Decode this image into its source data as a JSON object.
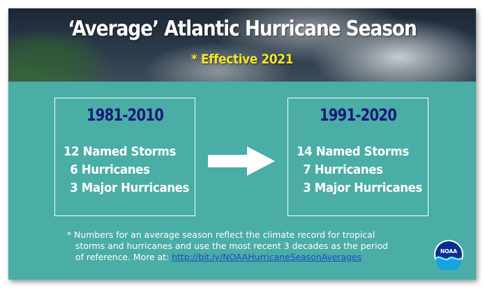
{
  "banner": {
    "title": "‘Average’ Atlantic Hurricane Season",
    "subtitle": "* Effective 2021"
  },
  "periods": [
    {
      "years": "1981-2010",
      "stats": [
        "12 Named Storms",
        "6 Hurricanes",
        "3 Major Hurricanes"
      ]
    },
    {
      "years": "1991-2020",
      "stats": [
        "14 Named Storms",
        "7 Hurricanes",
        "3 Major Hurricanes"
      ]
    }
  ],
  "arrow_icon": "right-arrow-icon",
  "footnote": {
    "line1": "* Numbers for an average season reflect the climate record for tropical",
    "line2": "storms and hurricanes and use the most recent 3 decades as the period",
    "line3_prefix": "of reference. More at: ",
    "link": "http://bit.ly/NOAAHurricaneSeasonAverages"
  },
  "logo": {
    "icon": "noaa-logo-icon",
    "text": "NOAA"
  },
  "colors": {
    "background": "#4aada6",
    "period_title": "#1a1a7a",
    "subtitle": "#f2e52a",
    "link": "#1f49c8"
  }
}
